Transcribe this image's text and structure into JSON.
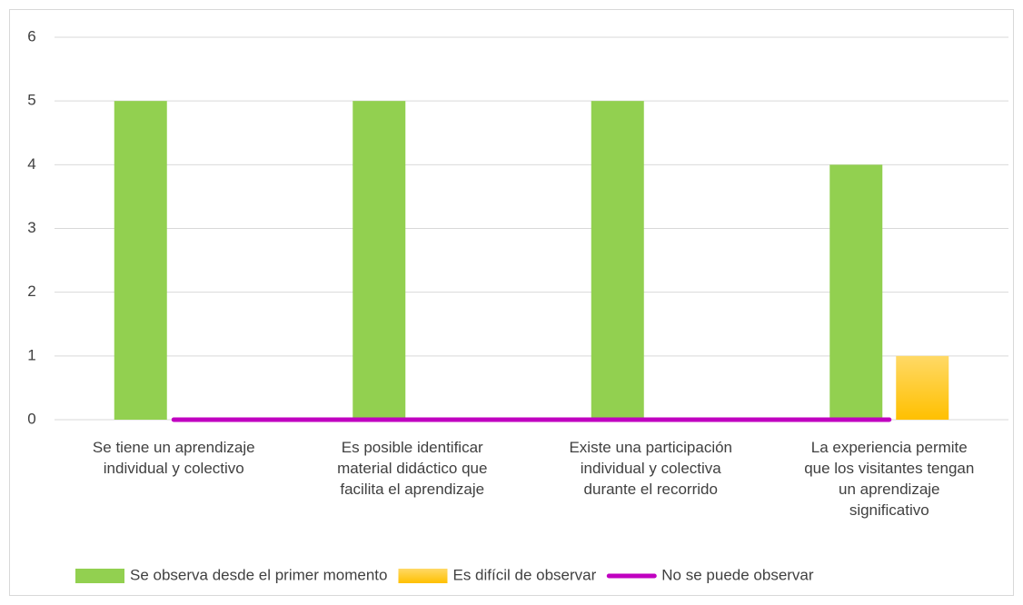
{
  "chart_data": {
    "type": "bar_line",
    "categories": [
      "Se tiene un aprendizaje individual y colectivo",
      "Es posible identificar material didáctico que facilita el aprendizaje",
      "Existe una participación individual y colectiva durante el recorrido",
      "La experiencia permite que los visitantes tengan un aprendizaje significativo"
    ],
    "series": [
      {
        "name": "Se observa desde el primer momento",
        "color": "#92d050",
        "type": "bar",
        "values": [
          5,
          5,
          5,
          4
        ]
      },
      {
        "name": "Es difícil de observar",
        "color": "#ffc000",
        "type": "bar",
        "values": [
          0,
          0,
          0,
          1
        ]
      },
      {
        "name": "No se puede observar",
        "color": "#c000c0",
        "type": "line",
        "values": [
          0,
          0,
          0,
          0
        ]
      }
    ],
    "ylim": [
      0,
      6
    ],
    "yticks": [
      0,
      1,
      2,
      3,
      4,
      5,
      6
    ],
    "grid": true,
    "legend": "bottom"
  }
}
